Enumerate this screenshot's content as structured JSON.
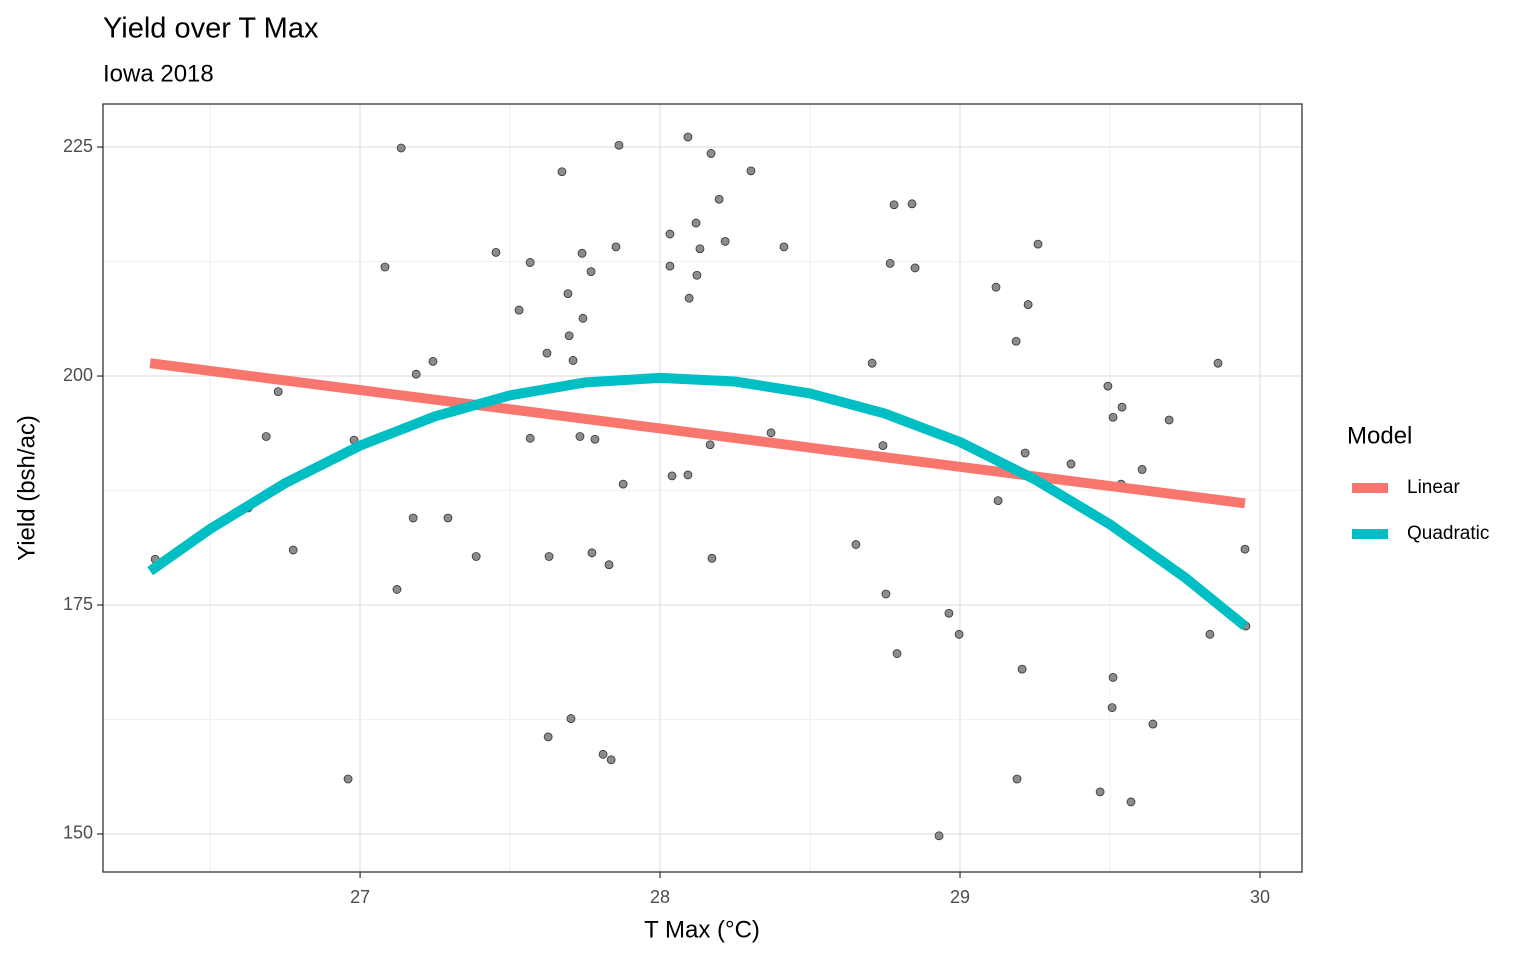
{
  "chart_data": {
    "type": "scatter",
    "title": "Yield over T Max",
    "subtitle": "Iowa 2018",
    "x_label": "T Max (°C)",
    "y_label": "Yield (bsh/ac)",
    "legend_title": "Model",
    "legend_position": "right",
    "grid": true,
    "point_color": "#8c8c8c",
    "xlim": [
      26.143,
      30.14
    ],
    "ylim": [
      145.85,
      229.7
    ],
    "xticks": [
      27,
      28,
      29,
      30
    ],
    "yticks": [
      150,
      175,
      200,
      225
    ],
    "xminor": [
      26.5,
      27.5,
      28.5,
      29.5
    ],
    "yminor": [
      162.5,
      187.5,
      212.5
    ],
    "x": [
      26.317,
      26.627,
      26.727,
      26.687,
      26.777,
      26.96,
      26.98,
      27.083,
      27.137,
      27.123,
      27.177,
      27.187,
      27.243,
      27.293,
      27.387,
      27.453,
      27.53,
      27.567,
      27.567,
      27.623,
      27.63,
      27.627,
      27.673,
      27.693,
      27.697,
      27.71,
      27.703,
      27.74,
      27.743,
      27.733,
      27.77,
      27.783,
      27.773,
      27.81,
      27.83,
      27.837,
      27.853,
      27.863,
      27.877,
      28.033,
      28.033,
      28.04,
      28.093,
      28.093,
      28.097,
      28.12,
      28.123,
      28.133,
      28.17,
      28.167,
      28.173,
      28.197,
      28.217,
      28.303,
      28.37,
      28.413,
      28.653,
      28.707,
      28.743,
      28.753,
      28.767,
      28.78,
      28.79,
      28.84,
      28.85,
      28.93,
      28.963,
      28.997,
      29.12,
      29.127,
      29.187,
      29.19,
      29.207,
      29.217,
      29.227,
      29.26,
      29.37,
      29.467,
      29.493,
      29.507,
      29.51,
      29.51,
      29.54,
      29.537,
      29.57,
      29.607,
      29.643,
      29.697,
      29.833,
      29.86,
      29.95,
      29.953
    ],
    "values": [
      180.0,
      185.6,
      198.3,
      193.4,
      181.0,
      156.0,
      193.0,
      211.9,
      224.9,
      176.7,
      184.5,
      200.2,
      201.6,
      184.5,
      180.3,
      213.5,
      207.2,
      212.4,
      193.2,
      202.5,
      180.3,
      160.6,
      222.3,
      209.0,
      204.4,
      201.7,
      162.6,
      213.4,
      206.3,
      193.4,
      211.4,
      193.1,
      180.7,
      158.7,
      179.4,
      158.1,
      214.1,
      225.2,
      188.2,
      215.5,
      212.0,
      189.1,
      226.1,
      189.2,
      208.5,
      216.7,
      211.0,
      213.9,
      224.3,
      192.5,
      180.1,
      219.3,
      214.7,
      222.4,
      193.8,
      214.1,
      181.6,
      201.4,
      192.4,
      176.2,
      212.3,
      218.7,
      169.7,
      218.8,
      211.8,
      149.8,
      174.1,
      171.8,
      209.7,
      186.4,
      203.8,
      156.0,
      168.0,
      191.6,
      207.8,
      214.4,
      190.4,
      154.6,
      198.9,
      163.8,
      167.1,
      195.5,
      196.6,
      188.2,
      153.5,
      189.8,
      162.0,
      195.2,
      171.8,
      201.4,
      181.1,
      172.7
    ],
    "series": [
      {
        "name": "Linear",
        "color": "#F8766D",
        "x": [
          26.3,
          29.95
        ],
        "values": [
          201.4,
          186.1
        ]
      },
      {
        "name": "Quadratic",
        "color": "#00BFC4",
        "x": [
          26.3,
          26.5,
          26.75,
          27.0,
          27.25,
          27.5,
          27.75,
          28.0,
          28.25,
          28.5,
          28.75,
          29.0,
          29.25,
          29.5,
          29.75,
          29.95
        ],
        "values": [
          178.7,
          183.3,
          188.3,
          192.4,
          195.6,
          197.9,
          199.3,
          199.8,
          199.4,
          198.1,
          195.9,
          192.8,
          188.7,
          183.8,
          178.0,
          172.7
        ]
      }
    ]
  }
}
